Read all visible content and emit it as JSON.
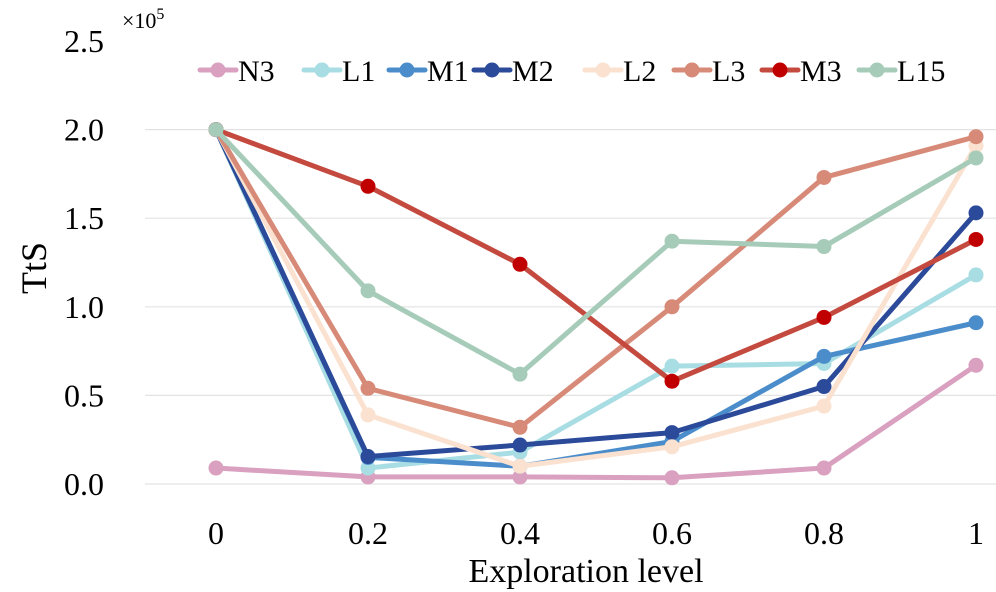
{
  "chart_data": {
    "type": "line",
    "title": "",
    "xlabel": "Exploration level",
    "ylabel": "TtS",
    "multiplier_label": "×10",
    "multiplier_exp": "5",
    "x": [
      0,
      0.2,
      0.4,
      0.6,
      0.8,
      1
    ],
    "x_tick_labels": [
      "0",
      "0.2",
      "0.4",
      "0.6",
      "0.8",
      "1"
    ],
    "y_ticks": [
      0,
      0.5,
      1.0,
      1.5,
      2.0,
      2.5
    ],
    "y_tick_labels": [
      "0.0",
      "0.5",
      "1.0",
      "1.5",
      "2.0",
      "2.5"
    ],
    "ylim": [
      0,
      2.5
    ],
    "grid": true,
    "legend_position": "top",
    "series": [
      {
        "name": "N3",
        "color": "#d9a0c0",
        "marker": "#d9a0c0",
        "values": [
          0.09,
          0.04,
          0.04,
          0.035,
          0.09,
          0.67
        ]
      },
      {
        "name": "L1",
        "color": "#a8dde3",
        "marker": "#a8dde3",
        "values": [
          2.0,
          0.09,
          0.18,
          0.665,
          0.68,
          1.18
        ]
      },
      {
        "name": "M1",
        "color": "#4b8dcb",
        "marker": "#4b8dcb",
        "values": [
          2.0,
          0.15,
          0.1,
          0.24,
          0.72,
          0.91
        ]
      },
      {
        "name": "M2",
        "color": "#2c4a9a",
        "marker": "#2c4a9a",
        "values": [
          2.0,
          0.155,
          0.22,
          0.29,
          0.55,
          1.53
        ]
      },
      {
        "name": "L2",
        "color": "#fbe1cf",
        "marker": "#fbe1cf",
        "values": [
          2.0,
          0.39,
          0.1,
          0.21,
          0.44,
          1.91
        ]
      },
      {
        "name": "L3",
        "color": "#d78a78",
        "marker": "#d78a78",
        "values": [
          2.0,
          0.54,
          0.32,
          1.0,
          1.73,
          1.96
        ]
      },
      {
        "name": "M3",
        "color": "#c44a3f",
        "marker": "#c00000",
        "values": [
          2.0,
          1.68,
          1.24,
          0.58,
          0.94,
          1.38
        ]
      },
      {
        "name": "L15",
        "color": "#a6ccb9",
        "marker": "#a6ccb9",
        "values": [
          2.0,
          1.09,
          0.62,
          1.37,
          1.34,
          1.84
        ]
      }
    ]
  }
}
